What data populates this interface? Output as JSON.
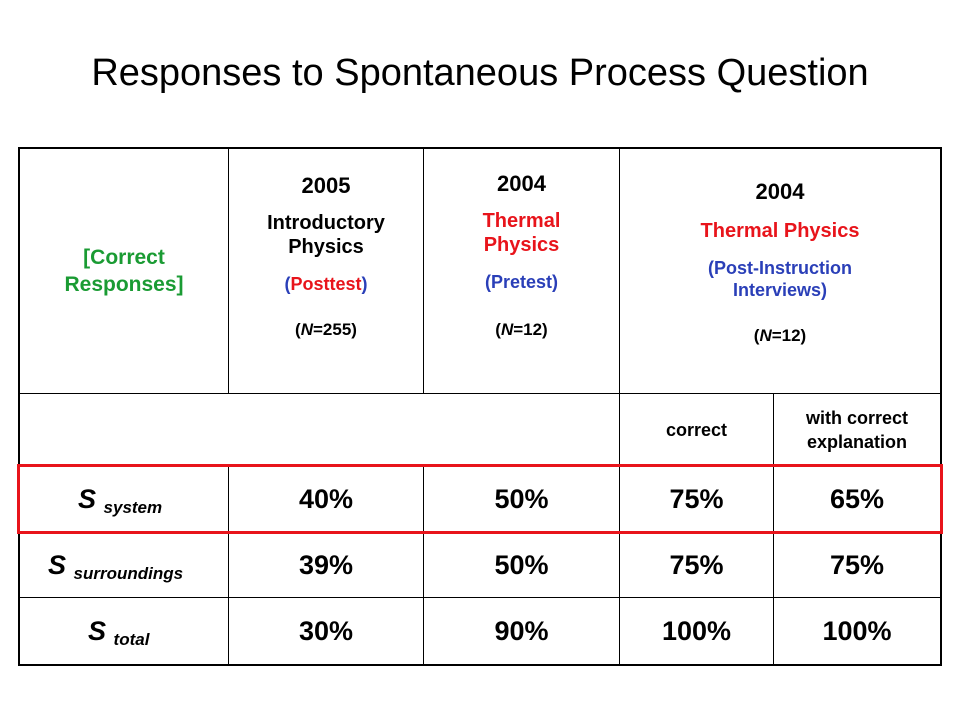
{
  "title": "Responses to Spontaneous Process Question",
  "colors": {
    "red": "#e8141b",
    "green": "#1a9b33",
    "blue": "#2a3fb8"
  },
  "header": {
    "row_label": "[Correct Responses]",
    "col1": {
      "year": "2005",
      "course": "Introductory Physics",
      "paren_open": "(",
      "test": "Posttest",
      "paren_close": ")",
      "n_open": "(",
      "n_letter": "N",
      "n_value": "=255)"
    },
    "col2": {
      "year": "2004",
      "course": "Thermal Physics",
      "test": "(Pretest)",
      "n_open": "(",
      "n_letter": "N",
      "n_value": "=12)"
    },
    "col3": {
      "year": "2004",
      "course": "Thermal Physics",
      "test": "(Post-Instruction Interviews)",
      "n_open": "(",
      "n_letter": "N",
      "n_value": "=12)"
    }
  },
  "subheader": {
    "correct": "correct",
    "with_explanation": "with correct explanation"
  },
  "rows": [
    {
      "symbol": "S",
      "subscript": "system",
      "values": [
        "40%",
        "50%",
        "75%",
        "65%"
      ]
    },
    {
      "symbol": "S",
      "subscript": "surroundings",
      "values": [
        "39%",
        "50%",
        "75%",
        "75%"
      ]
    },
    {
      "symbol": "S",
      "subscript": "total",
      "values": [
        "30%",
        "90%",
        "100%",
        "100%"
      ]
    }
  ]
}
